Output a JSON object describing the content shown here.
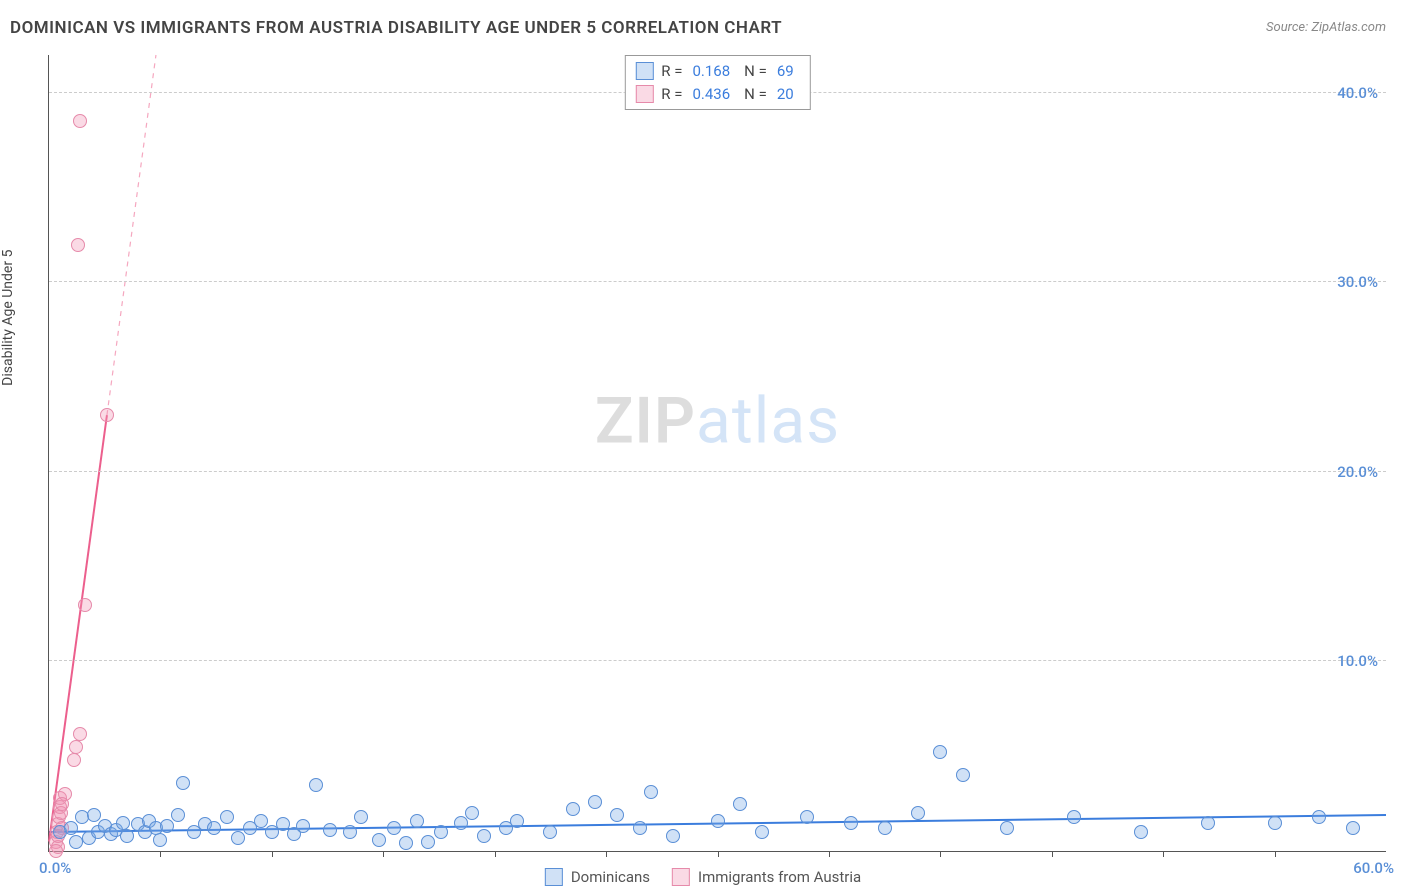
{
  "header": {
    "title": "DOMINICAN VS IMMIGRANTS FROM AUSTRIA DISABILITY AGE UNDER 5 CORRELATION CHART",
    "source_prefix": "Source: ",
    "source_name": "ZipAtlas.com"
  },
  "chart": {
    "type": "scatter",
    "ylabel": "Disability Age Under 5",
    "xlim": [
      0,
      60
    ],
    "ylim": [
      0,
      42
    ],
    "x_origin_label": "0.0%",
    "x_max_label": "60.0%",
    "yticks": [
      10,
      20,
      30,
      40
    ],
    "ytick_labels": [
      "10.0%",
      "20.0%",
      "30.0%",
      "40.0%"
    ],
    "xtick_positions": [
      5,
      10,
      15,
      20,
      25,
      30,
      35,
      40,
      45,
      50,
      55
    ],
    "grid_color": "#cccccc",
    "axis_color": "#555555",
    "tick_label_color": "#5a8fd6",
    "background_color": "#ffffff",
    "marker_radius": 7,
    "marker_stroke_width": 1,
    "watermark": {
      "zip": "ZIP",
      "atlas": "atlas"
    }
  },
  "series": {
    "dominicans": {
      "label": "Dominicans",
      "fill": "rgba(120,170,230,0.35)",
      "stroke": "#5a8fd6",
      "stat_r_label": "R =",
      "stat_r": "0.168",
      "stat_n_label": "N =",
      "stat_n": "69",
      "trend": {
        "x1": 0,
        "y1": 1.0,
        "x2": 60,
        "y2": 1.9,
        "stroke": "#3b7ddd",
        "width": 2,
        "dash": ""
      },
      "points": [
        [
          0.5,
          1.0
        ],
        [
          1.0,
          1.2
        ],
        [
          1.2,
          0.5
        ],
        [
          1.5,
          1.8
        ],
        [
          1.8,
          0.7
        ],
        [
          2.0,
          1.9
        ],
        [
          2.2,
          1.0
        ],
        [
          2.5,
          1.3
        ],
        [
          2.8,
          0.9
        ],
        [
          3.0,
          1.1
        ],
        [
          3.3,
          1.5
        ],
        [
          3.5,
          0.8
        ],
        [
          4.0,
          1.4
        ],
        [
          4.3,
          1.0
        ],
        [
          4.5,
          1.6
        ],
        [
          4.8,
          1.2
        ],
        [
          5.0,
          0.6
        ],
        [
          5.3,
          1.3
        ],
        [
          5.8,
          1.9
        ],
        [
          6.0,
          3.6
        ],
        [
          6.5,
          1.0
        ],
        [
          7.0,
          1.4
        ],
        [
          7.4,
          1.2
        ],
        [
          8.0,
          1.8
        ],
        [
          8.5,
          0.7
        ],
        [
          9.0,
          1.2
        ],
        [
          9.5,
          1.6
        ],
        [
          10.0,
          1.0
        ],
        [
          10.5,
          1.4
        ],
        [
          11.0,
          0.9
        ],
        [
          11.4,
          1.3
        ],
        [
          12.0,
          3.5
        ],
        [
          12.6,
          1.1
        ],
        [
          13.5,
          1.0
        ],
        [
          14.0,
          1.8
        ],
        [
          14.8,
          0.6
        ],
        [
          15.5,
          1.2
        ],
        [
          16.0,
          0.4
        ],
        [
          16.5,
          1.6
        ],
        [
          17.0,
          0.5
        ],
        [
          17.6,
          1.0
        ],
        [
          18.5,
          1.5
        ],
        [
          19.0,
          2.0
        ],
        [
          19.5,
          0.8
        ],
        [
          20.5,
          1.2
        ],
        [
          21.0,
          1.6
        ],
        [
          22.5,
          1.0
        ],
        [
          23.5,
          2.2
        ],
        [
          24.5,
          2.6
        ],
        [
          25.5,
          1.9
        ],
        [
          26.5,
          1.2
        ],
        [
          27.0,
          3.1
        ],
        [
          28.0,
          0.8
        ],
        [
          30.0,
          1.6
        ],
        [
          31.0,
          2.5
        ],
        [
          32.0,
          1.0
        ],
        [
          34.0,
          1.8
        ],
        [
          36.0,
          1.5
        ],
        [
          37.5,
          1.2
        ],
        [
          39.0,
          2.0
        ],
        [
          40.0,
          5.2
        ],
        [
          41.0,
          4.0
        ],
        [
          43.0,
          1.2
        ],
        [
          46.0,
          1.8
        ],
        [
          49.0,
          1.0
        ],
        [
          52.0,
          1.5
        ],
        [
          55.0,
          1.5
        ],
        [
          57.0,
          1.8
        ],
        [
          58.5,
          1.2
        ]
      ]
    },
    "austria": {
      "label": "Immigrants from Austria",
      "fill": "rgba(240,150,180,0.35)",
      "stroke": "#e68aaa",
      "stat_r_label": "R =",
      "stat_r": "0.436",
      "stat_n_label": "N =",
      "stat_n": "20",
      "trend_solid": {
        "x1": 0,
        "y1": 0.5,
        "x2": 2.6,
        "y2": 23,
        "stroke": "#ec5f8d",
        "width": 2
      },
      "trend_dash": {
        "x1": 2.6,
        "y1": 23,
        "x2": 4.8,
        "y2": 42,
        "stroke": "#f5a7bf",
        "width": 1.2,
        "dash": "5,5"
      },
      "points": [
        [
          0.3,
          0.5
        ],
        [
          0.35,
          1.0
        ],
        [
          0.4,
          1.4
        ],
        [
          0.45,
          1.8
        ],
        [
          0.5,
          2.3
        ],
        [
          0.55,
          2.0
        ],
        [
          0.5,
          2.8
        ],
        [
          0.6,
          1.2
        ],
        [
          0.4,
          0.2
        ],
        [
          0.42,
          0.8
        ],
        [
          0.7,
          3.0
        ],
        [
          0.6,
          2.5
        ],
        [
          1.2,
          5.5
        ],
        [
          1.4,
          6.2
        ],
        [
          1.1,
          4.8
        ],
        [
          1.6,
          13.0
        ],
        [
          2.6,
          23.0
        ],
        [
          1.3,
          32.0
        ],
        [
          1.4,
          38.5
        ],
        [
          0.3,
          0.0
        ]
      ]
    }
  }
}
